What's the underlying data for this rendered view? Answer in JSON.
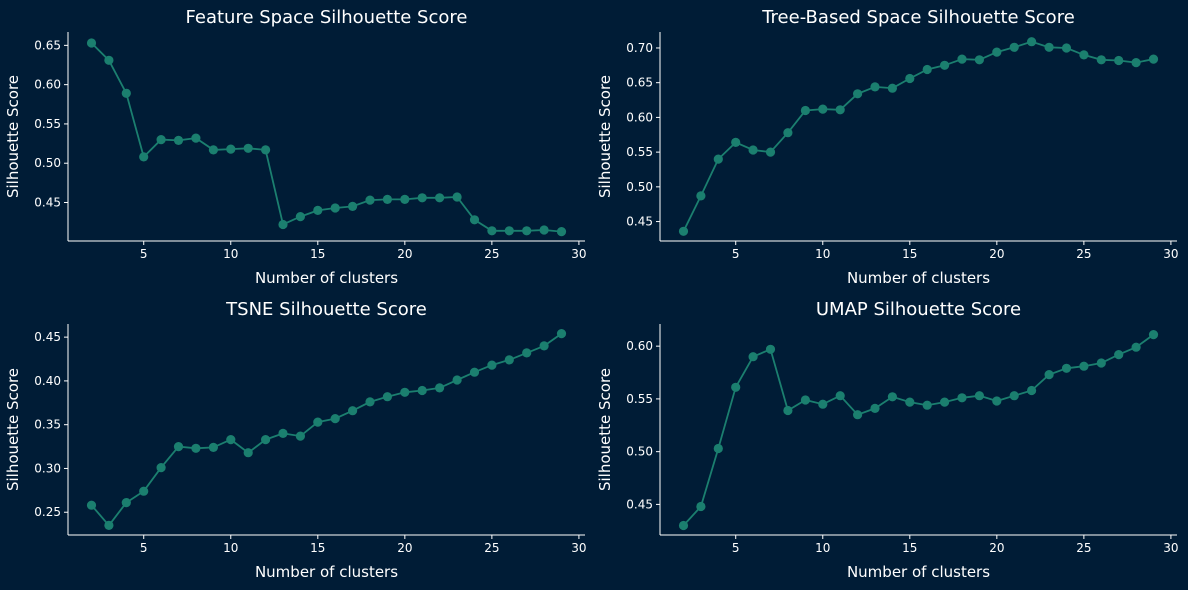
{
  "colors": {
    "background": "#001c36",
    "series": "#1b7f6f",
    "text": "#ffffff",
    "axis": "#ffffff"
  },
  "chart_data": [
    {
      "type": "line",
      "title": "Feature Space Silhouette Score",
      "xlabel": "Number of clusters",
      "ylabel": "Silhouette Score",
      "xlim": [
        0.65,
        30.35
      ],
      "ylim": [
        0.401,
        0.667
      ],
      "xticks": [
        5,
        10,
        15,
        20,
        25,
        30
      ],
      "yticks": [
        0.45,
        0.5,
        0.55,
        0.6,
        0.65
      ],
      "grid": false,
      "markers": true,
      "x": [
        2,
        3,
        4,
        5,
        6,
        7,
        8,
        9,
        10,
        11,
        12,
        13,
        14,
        15,
        16,
        17,
        18,
        19,
        20,
        21,
        22,
        23,
        24,
        25,
        26,
        27,
        28,
        29
      ],
      "y": [
        0.653,
        0.631,
        0.589,
        0.508,
        0.53,
        0.529,
        0.532,
        0.517,
        0.518,
        0.519,
        0.517,
        0.422,
        0.432,
        0.44,
        0.443,
        0.445,
        0.453,
        0.454,
        0.454,
        0.456,
        0.456,
        0.457,
        0.428,
        0.414,
        0.414,
        0.414,
        0.415,
        0.413
      ]
    },
    {
      "type": "line",
      "title": "Tree-Based Space Silhouette Score",
      "xlabel": "Number of clusters",
      "ylabel": "Silhouette Score",
      "xlim": [
        0.65,
        30.35
      ],
      "ylim": [
        0.422,
        0.723
      ],
      "xticks": [
        5,
        10,
        15,
        20,
        25,
        30
      ],
      "yticks": [
        0.45,
        0.5,
        0.55,
        0.6,
        0.65,
        0.7
      ],
      "grid": false,
      "markers": true,
      "x": [
        2,
        3,
        4,
        5,
        6,
        7,
        8,
        9,
        10,
        11,
        12,
        13,
        14,
        15,
        16,
        17,
        18,
        19,
        20,
        21,
        22,
        23,
        24,
        25,
        26,
        27,
        28,
        29
      ],
      "y": [
        0.436,
        0.487,
        0.54,
        0.564,
        0.553,
        0.55,
        0.578,
        0.61,
        0.612,
        0.611,
        0.634,
        0.644,
        0.642,
        0.656,
        0.669,
        0.675,
        0.684,
        0.683,
        0.694,
        0.701,
        0.709,
        0.701,
        0.7,
        0.69,
        0.683,
        0.682,
        0.679,
        0.684
      ]
    },
    {
      "type": "line",
      "title": "TSNE Silhouette Score",
      "xlabel": "Number of clusters",
      "ylabel": "Silhouette Score",
      "xlim": [
        0.65,
        30.35
      ],
      "ylim": [
        0.224,
        0.465
      ],
      "xticks": [
        5,
        10,
        15,
        20,
        25,
        30
      ],
      "yticks": [
        0.25,
        0.3,
        0.35,
        0.4,
        0.45
      ],
      "grid": false,
      "markers": true,
      "x": [
        2,
        3,
        4,
        5,
        6,
        7,
        8,
        9,
        10,
        11,
        12,
        13,
        14,
        15,
        16,
        17,
        18,
        19,
        20,
        21,
        22,
        23,
        24,
        25,
        26,
        27,
        28,
        29
      ],
      "y": [
        0.258,
        0.235,
        0.261,
        0.274,
        0.301,
        0.325,
        0.323,
        0.324,
        0.333,
        0.318,
        0.333,
        0.34,
        0.337,
        0.353,
        0.357,
        0.366,
        0.376,
        0.382,
        0.387,
        0.389,
        0.392,
        0.401,
        0.41,
        0.418,
        0.424,
        0.432,
        0.44,
        0.454
      ]
    },
    {
      "type": "line",
      "title": "UMAP Silhouette Score",
      "xlabel": "Number of clusters",
      "ylabel": "Silhouette Score",
      "xlim": [
        0.65,
        30.35
      ],
      "ylim": [
        0.421,
        0.621
      ],
      "xticks": [
        5,
        10,
        15,
        20,
        25,
        30
      ],
      "yticks": [
        0.45,
        0.5,
        0.55,
        0.6
      ],
      "grid": false,
      "markers": true,
      "x": [
        2,
        3,
        4,
        5,
        6,
        7,
        8,
        9,
        10,
        11,
        12,
        13,
        14,
        15,
        16,
        17,
        18,
        19,
        20,
        21,
        22,
        23,
        24,
        25,
        26,
        27,
        28,
        29
      ],
      "y": [
        0.43,
        0.448,
        0.503,
        0.561,
        0.59,
        0.597,
        0.539,
        0.549,
        0.545,
        0.553,
        0.535,
        0.541,
        0.552,
        0.547,
        0.544,
        0.547,
        0.551,
        0.553,
        0.548,
        0.553,
        0.558,
        0.573,
        0.579,
        0.581,
        0.584,
        0.592,
        0.599,
        0.611
      ]
    }
  ]
}
